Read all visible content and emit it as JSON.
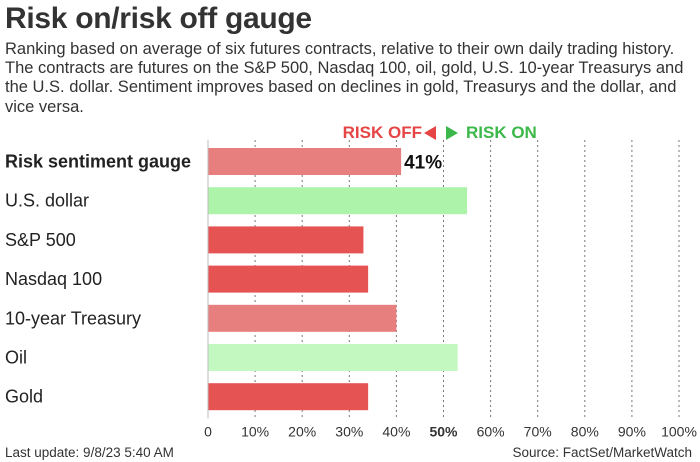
{
  "header": {
    "title": "Risk on/risk off gauge",
    "subtitle": "Ranking based on average of six futures contracts, relative to their own daily trading history. The contracts are futures on the S&P 500, Nasdaq 100, oil, gold, U.S. 10-year Treasurys and the U.S. dollar. Sentiment improves based on declines in gold, Treasurys and the dollar, and vice versa."
  },
  "legend": {
    "risk_off": "RISK OFF",
    "risk_on": "RISK ON",
    "risk_off_color": "#e64545",
    "risk_on_color": "#3cb84a"
  },
  "chart_data": {
    "type": "bar",
    "orientation": "horizontal",
    "categories": [
      "Risk sentiment gauge",
      "U.S. dollar",
      "S&P 500",
      "Nasdaq 100",
      "10-year Treasury",
      "Oil",
      "Gold"
    ],
    "values": [
      41,
      55,
      33,
      34,
      40,
      53,
      34
    ],
    "colors": [
      "#e87f7f",
      "#aef3aa",
      "#e65353",
      "#e65353",
      "#e87f7f",
      "#c3f8c0",
      "#e65353"
    ],
    "data_labels": [
      "41%",
      "",
      "",
      "",
      "",
      "",
      ""
    ],
    "bold_categories": [
      "Risk sentiment gauge"
    ],
    "xlim": [
      0,
      100
    ],
    "xticks": [
      0,
      10,
      20,
      30,
      40,
      50,
      60,
      70,
      80,
      90,
      100
    ],
    "xtick_labels": [
      "0",
      "10%",
      "20%",
      "30%",
      "40%",
      "50%",
      "60%",
      "70%",
      "80%",
      "90%",
      "100%"
    ],
    "highlight_tick": 50,
    "grid": "vertical dotted"
  },
  "footer": {
    "last_update": "Last update: 9/8/23 5:40 AM",
    "source": "Source: FactSet/MarketWatch"
  }
}
